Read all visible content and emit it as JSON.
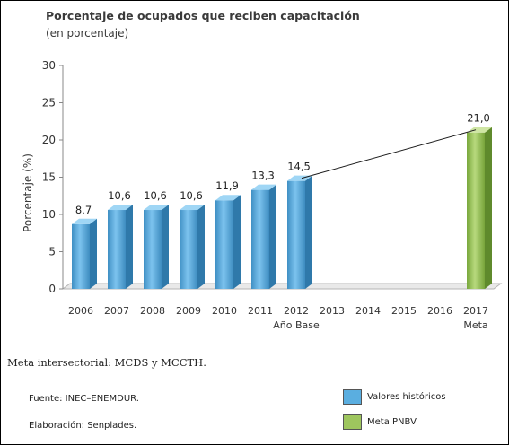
{
  "chart_data": {
    "type": "bar",
    "title": "Porcentaje de ocupados que reciben capacitación",
    "subtitle": "(en porcentaje)",
    "ylabel": "Porcentaje (%)",
    "ylim": [
      0,
      30
    ],
    "yticks": [
      0,
      5,
      10,
      15,
      20,
      25,
      30
    ],
    "categories": [
      "2006",
      "2007",
      "2008",
      "2009",
      "2010",
      "2011",
      "2012",
      "2013",
      "2014",
      "2015",
      "2016",
      "2017"
    ],
    "category_sublabels": {
      "2012": "Año Base",
      "2017": "Meta"
    },
    "series": [
      {
        "name": "Valores históricos",
        "color": "#5aaee0",
        "values": [
          8.7,
          10.6,
          10.6,
          10.6,
          11.9,
          13.3,
          14.5,
          null,
          null,
          null,
          null,
          null
        ],
        "labels": [
          "8,7",
          "10,6",
          "10,6",
          "10,6",
          "11,9",
          "13,3",
          "14,5",
          "",
          "",
          "",
          "",
          ""
        ]
      },
      {
        "name": "Meta PNBV",
        "color": "#9ec65e",
        "values": [
          null,
          null,
          null,
          null,
          null,
          null,
          null,
          null,
          null,
          null,
          null,
          21.0
        ],
        "labels": [
          "",
          "",
          "",
          "",
          "",
          "",
          "",
          "",
          "",
          "",
          "",
          "21,0"
        ]
      }
    ],
    "trend_line": {
      "from": "2012",
      "to": "2017"
    },
    "grid": false,
    "legend_position": "bottom-right"
  },
  "notes": {
    "intersectoral": "Meta intersectorial: MCDS y MCCTH.",
    "source": "Fuente: INEC–ENEMDUR.",
    "elaboration": "Elaboración: Senplades."
  },
  "legend": [
    {
      "label": "Valores históricos",
      "color": "#5aaee0"
    },
    {
      "label": "Meta PNBV",
      "color": "#9ec65e"
    }
  ]
}
